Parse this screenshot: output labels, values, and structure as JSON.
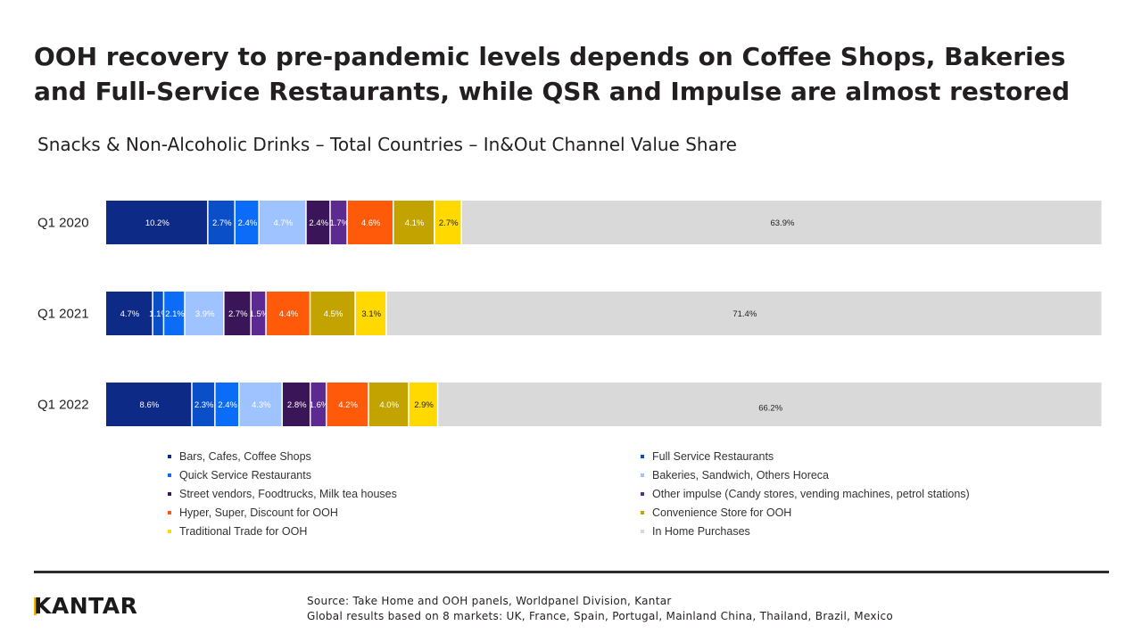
{
  "title": "OOH recovery to pre-pandemic levels depends on Coffee Shops, Bakeries and Full-Service Restaurants, while QSR and Impulse are almost restored",
  "subtitle": "Snacks & Non-Alcoholic Drinks – Total Countries – In&Out Channel Value Share",
  "footer": {
    "logo": "KANTAR",
    "source_line1": "Source: Take Home and OOH panels, Worldpanel Division,  Kantar",
    "source_line2": "Global results based on 8 markets: UK, France, Spain, Portugal, Mainland China, Thailand, Brazil, Mexico"
  },
  "colors": {
    "bars_cafes": "#0e2a87",
    "full_service": "#0b4fc8",
    "qsr": "#0a6cf7",
    "bakeries": "#9ec3ff",
    "street_vendors": "#3a1557",
    "other_impulse": "#5c2a91",
    "hyper_super": "#ff5a0a",
    "convenience": "#c2a300",
    "traditional": "#ffd900",
    "in_home": "#d9d9d9"
  },
  "chart_data": {
    "type": "bar",
    "orientation": "horizontal",
    "stacked": true,
    "categories": [
      "Q1 2020",
      "Q1 2021",
      "Q1 2022"
    ],
    "series": [
      {
        "name": "Bars, Cafes, Coffee Shops",
        "values": [
          10.2,
          4.7,
          8.6
        ],
        "labels": [
          "10.2%",
          "4.7%",
          "8.6%"
        ]
      },
      {
        "name": "Full Service Restaurants",
        "values": [
          2.7,
          1.1,
          2.3
        ],
        "labels": [
          "2.7%",
          "1.1%",
          "2.3%"
        ]
      },
      {
        "name": "Quick Service Restaurants",
        "values": [
          2.4,
          2.1,
          2.4
        ],
        "labels": [
          "2.4%",
          "2.1%",
          "2.4%"
        ]
      },
      {
        "name": "Bakeries, Sandwich, Others Horeca",
        "values": [
          4.7,
          3.9,
          4.3
        ],
        "labels": [
          "4.7%",
          "3.9%",
          "4.3%"
        ]
      },
      {
        "name": "Street vendors, Foodtrucks, Milk tea houses",
        "values": [
          2.4,
          2.7,
          2.8
        ],
        "labels": [
          "2.4%",
          "2.7%",
          "2.8%"
        ]
      },
      {
        "name": "Other impulse (Candy stores, vending machines, petrol stations)",
        "values": [
          1.7,
          1.5,
          1.6
        ],
        "labels": [
          "1.7%",
          "1.5%",
          "1.6%"
        ]
      },
      {
        "name": "Hyper, Super, Discount for OOH",
        "values": [
          4.6,
          4.4,
          4.2
        ],
        "labels": [
          "4.6%",
          "4.4%",
          "4.2%"
        ]
      },
      {
        "name": "Convenience Store for OOH",
        "values": [
          4.1,
          4.5,
          4.0
        ],
        "labels": [
          "4.1%",
          "4.5%",
          "4.0%"
        ]
      },
      {
        "name": "Traditional Trade for OOH",
        "values": [
          2.7,
          3.1,
          2.9
        ],
        "labels": [
          "2.7%",
          "3.1%",
          "2.9%"
        ]
      },
      {
        "name": "In Home Purchases",
        "values": [
          63.9,
          71.4,
          66.2
        ],
        "labels": [
          "63.9%",
          "71.4%",
          "66.2%"
        ]
      }
    ],
    "xlim": [
      0,
      100
    ],
    "legend": "bottom, two columns",
    "grid": false
  },
  "legend_order": [
    0,
    1,
    2,
    3,
    4,
    5,
    6,
    7,
    8,
    9
  ]
}
